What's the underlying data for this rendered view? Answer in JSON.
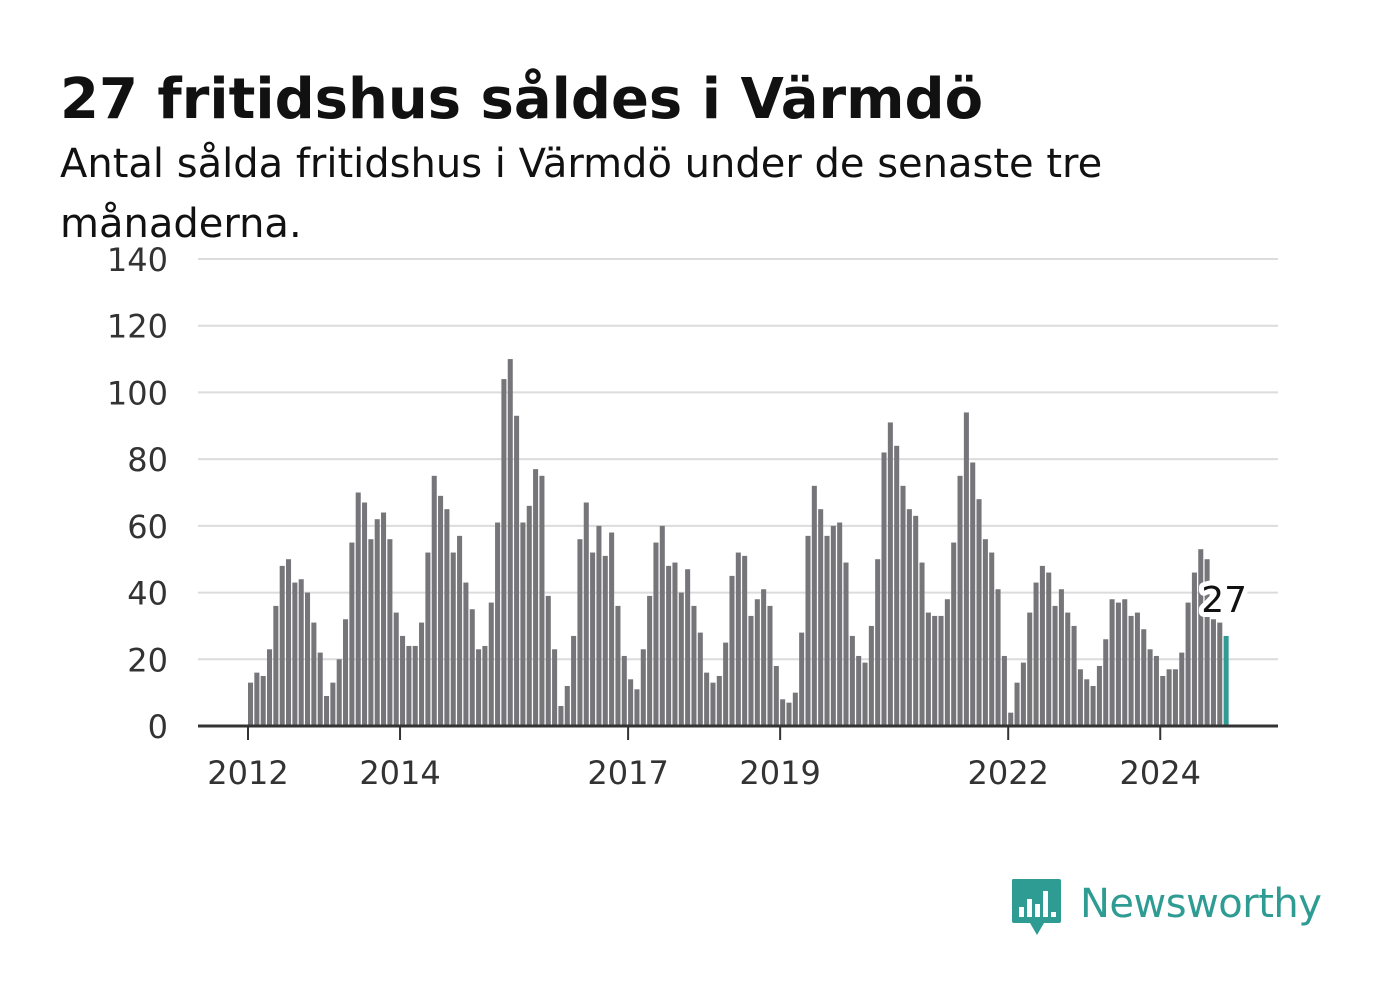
{
  "header": {
    "title": "27 fritidshus såldes i Värmdö",
    "subtitle": "Antal sålda fritidshus i Värmdö under de senaste tre månaderna."
  },
  "brand": {
    "name": "Newsworthy",
    "icon": "bar-chart-speech-bubble-icon",
    "color": "#2f9c93"
  },
  "chart_data": {
    "type": "bar",
    "title": "27 fritidshus såldes i Värmdö",
    "subtitle": "Antal sålda fritidshus i Värmdö under de senaste tre månaderna.",
    "xlabel": "",
    "ylabel": "",
    "ylim": [
      0,
      140
    ],
    "yticks": [
      0,
      20,
      40,
      60,
      80,
      100,
      120,
      140
    ],
    "xticks": [
      "2012",
      "2014",
      "2017",
      "2019",
      "2022",
      "2024"
    ],
    "grid": true,
    "legend": "none",
    "bar_color": "#76757a",
    "highlight_color": "#2f9c93",
    "highlight_label": "27",
    "start": "2012-01",
    "frequency": "monthly",
    "values": [
      13,
      16,
      15,
      23,
      36,
      48,
      50,
      43,
      44,
      40,
      31,
      22,
      9,
      13,
      20,
      32,
      55,
      70,
      67,
      56,
      62,
      64,
      56,
      34,
      27,
      24,
      24,
      31,
      52,
      75,
      69,
      65,
      52,
      57,
      43,
      35,
      23,
      24,
      37,
      61,
      104,
      110,
      93,
      61,
      66,
      77,
      75,
      39,
      23,
      6,
      12,
      27,
      56,
      67,
      52,
      60,
      51,
      58,
      36,
      21,
      14,
      11,
      23,
      39,
      55,
      60,
      48,
      49,
      40,
      47,
      36,
      28,
      16,
      13,
      15,
      25,
      45,
      52,
      51,
      33,
      38,
      41,
      36,
      18,
      8,
      7,
      10,
      28,
      57,
      72,
      65,
      57,
      60,
      61,
      49,
      27,
      21,
      19,
      30,
      50,
      82,
      91,
      84,
      72,
      65,
      63,
      49,
      34,
      33,
      33,
      38,
      55,
      75,
      94,
      79,
      68,
      56,
      52,
      41,
      21,
      4,
      13,
      19,
      34,
      43,
      48,
      46,
      36,
      41,
      34,
      30,
      17,
      14,
      12,
      18,
      26,
      38,
      37,
      38,
      33,
      34,
      29,
      23,
      21,
      15,
      17,
      17,
      22,
      37,
      46,
      53,
      50,
      32,
      31,
      27
    ]
  }
}
